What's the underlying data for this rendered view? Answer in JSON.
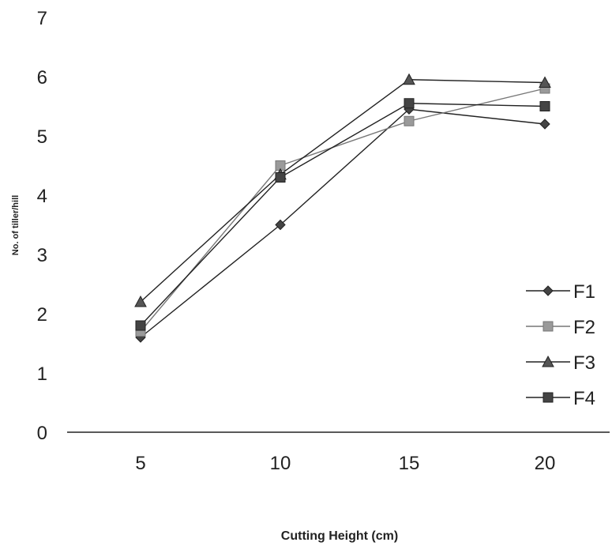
{
  "chart_data": {
    "type": "line",
    "title": "",
    "xlabel": "Cutting Height (cm)",
    "ylabel": "No. of tiller/hill",
    "categories": [
      "5",
      "10",
      "15",
      "20"
    ],
    "yticks": [
      "0",
      "1",
      "2",
      "3",
      "4",
      "5",
      "6",
      "7"
    ],
    "ylim": [
      0,
      7
    ],
    "grid": false,
    "legend_position": "right",
    "series": [
      {
        "name": "F1",
        "values": [
          1.6,
          3.5,
          5.45,
          5.2
        ],
        "marker": "diamond",
        "color": "#222222",
        "marker_fill": "#444444"
      },
      {
        "name": "F2",
        "values": [
          1.7,
          4.5,
          5.25,
          5.8
        ],
        "marker": "square",
        "color": "#777777",
        "marker_fill": "#9a9a9a"
      },
      {
        "name": "F3",
        "values": [
          2.2,
          4.35,
          5.95,
          5.9
        ],
        "marker": "triangle",
        "color": "#222222",
        "marker_fill": "#555555"
      },
      {
        "name": "F4",
        "values": [
          1.8,
          4.3,
          5.55,
          5.5
        ],
        "marker": "square",
        "color": "#222222",
        "marker_fill": "#444444"
      }
    ]
  }
}
